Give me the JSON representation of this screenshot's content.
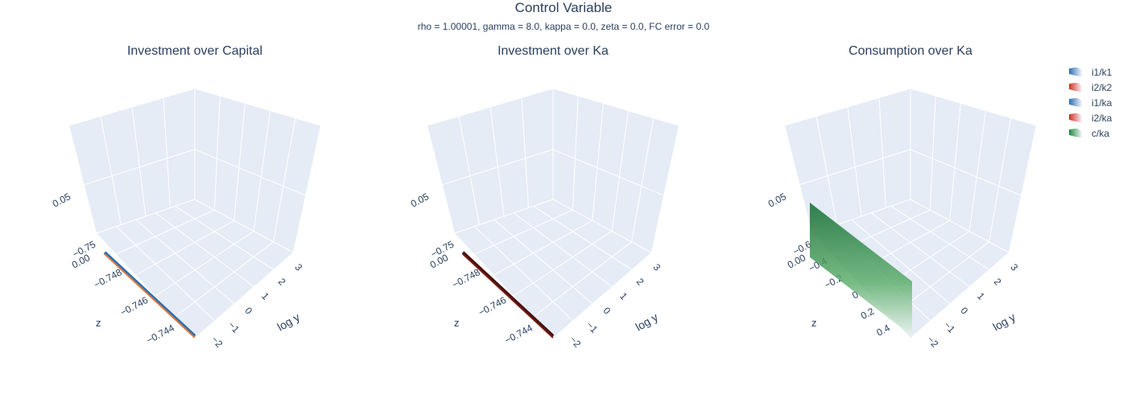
{
  "main_title": "Control Variable",
  "subtitle": "rho = 1.00001, gamma = 8.0, kappa = 0.0, zeta = 0.0, FC error = 0.0",
  "legend": [
    {
      "label": "i1/k1",
      "color": "#2c6fb0"
    },
    {
      "label": "i2/k2",
      "color": "#d62d20"
    },
    {
      "label": "i1/ka",
      "color": "#2c6fb0"
    },
    {
      "label": "i2/ka",
      "color": "#d62d20"
    },
    {
      "label": "c/ka",
      "color": "#1a8a3c"
    }
  ],
  "chart_data": [
    {
      "type": "surface",
      "title": "Investment over Capital",
      "xlabel": "",
      "ylabel": "log y",
      "zlabel": "z",
      "z_ticks": [
        "−0.75",
        "−0.748",
        "−0.746",
        "−0.744"
      ],
      "y_ticks": [
        "−2",
        "−1",
        "0",
        "1",
        "2",
        "3"
      ],
      "vertical_ticks": [
        "0.05",
        "0.00"
      ],
      "series": [
        {
          "name": "i1/k1",
          "color": "#2c6fb0"
        },
        {
          "name": "i2/k2",
          "color": "#d62d20"
        }
      ],
      "values": {
        "vertical": 0.0
      }
    },
    {
      "type": "surface",
      "title": "Investment over Ka",
      "xlabel": "",
      "ylabel": "log y",
      "zlabel": "z",
      "z_ticks": [
        "−0.75",
        "−0.748",
        "−0.746",
        "−0.744"
      ],
      "y_ticks": [
        "−2",
        "−1",
        "0",
        "1",
        "2",
        "3"
      ],
      "vertical_ticks": [
        "0.05",
        "0.00"
      ],
      "series": [
        {
          "name": "i1/ka",
          "color": "#2c6fb0"
        },
        {
          "name": "i2/ka",
          "color": "#d62d20"
        }
      ],
      "values": {
        "vertical": 0.0
      }
    },
    {
      "type": "surface",
      "title": "Consumption over Ka",
      "xlabel": "",
      "ylabel": "log y",
      "zlabel": "z",
      "z_ticks": [
        "−0.6",
        "−0.4",
        "−0.2",
        "0",
        "0.2",
        "0.4"
      ],
      "y_ticks": [
        "−2",
        "−1",
        "0",
        "1",
        "2",
        "3"
      ],
      "vertical_ticks": [
        "0.05",
        "0.00"
      ],
      "series": [
        {
          "name": "c/ka",
          "color": "#1a8a3c"
        }
      ],
      "values": {
        "surface_height_range": [
          0.0,
          0.06
        ]
      }
    }
  ]
}
